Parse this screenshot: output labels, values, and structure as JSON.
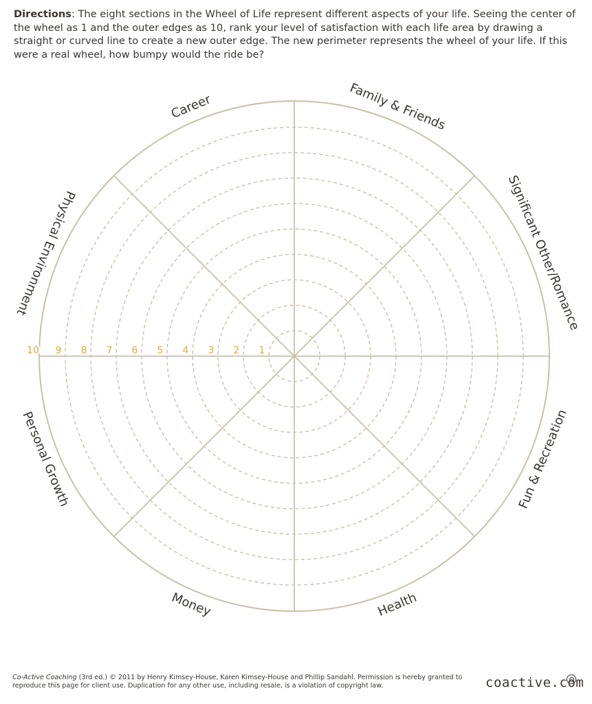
{
  "directions": {
    "heading": "Directions",
    "text": ": The eight sections in the Wheel of Life represent different aspects of your life. Seeing the center of the wheel as 1 and the outer edges as 10, rank your level of satisfaction with each life area by drawing a straight or curved line to create a new outer edge. The new perimeter represents the wheel of your life. If this were a real wheel, how bumpy would the ride be?"
  },
  "wheel": {
    "line_color": "#cbbfa9",
    "number_color": "#e6a93a",
    "scale": [
      "1",
      "2",
      "3",
      "4",
      "5",
      "6",
      "7",
      "8",
      "9",
      "10"
    ],
    "sections": [
      {
        "label": "Career"
      },
      {
        "label": "Family & Friends"
      },
      {
        "label": "Significant Other/Romance"
      },
      {
        "label": "Fun & Recreation"
      },
      {
        "label": "Health"
      },
      {
        "label": "Money"
      },
      {
        "label": "Personal Growth"
      },
      {
        "label": "Physical Environment"
      }
    ]
  },
  "footer": {
    "book_title": "Co-Active Coaching",
    "text": " (3rd ed.) © 2011 by Henry Kimsey-House, Karen Kimsey-House and Phillip Sandahl. Permission is hereby granted to reproduce this page for client use. Duplication for any other use, including resale, is a violation of copyright law.",
    "brand": "coactive.com"
  }
}
